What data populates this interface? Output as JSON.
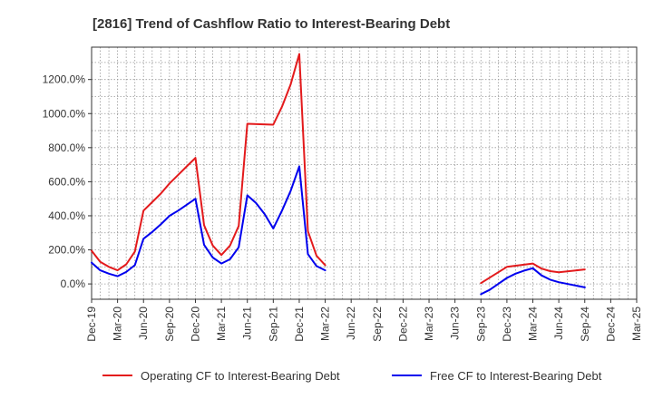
{
  "chart_data": {
    "type": "line",
    "title": "[2816]  Trend of Cashflow Ratio to Interest-Bearing Debt",
    "xlabel": "",
    "ylabel": "",
    "ylim": [
      -90,
      1390
    ],
    "y_ticks": [
      0,
      200,
      400,
      600,
      800,
      1000,
      1200
    ],
    "y_tick_labels": [
      "0.0%",
      "200.0%",
      "400.0%",
      "600.0%",
      "800.0%",
      "1000.0%",
      "1200.0%"
    ],
    "x_range": [
      "2019-12",
      "2025-03"
    ],
    "x_ticks": [
      "2019-12",
      "2020-03",
      "2020-06",
      "2020-09",
      "2020-12",
      "2021-03",
      "2021-06",
      "2021-09",
      "2021-12",
      "2022-03",
      "2022-06",
      "2022-09",
      "2022-12",
      "2023-03",
      "2023-06",
      "2023-09",
      "2023-12",
      "2024-03",
      "2024-06",
      "2024-09",
      "2024-12",
      "2025-03"
    ],
    "x_tick_labels": [
      "Dec-19",
      "Mar-20",
      "Jun-20",
      "Sep-20",
      "Dec-20",
      "Mar-21",
      "Jun-21",
      "Sep-21",
      "Dec-21",
      "Mar-22",
      "Jun-22",
      "Sep-22",
      "Dec-22",
      "Mar-23",
      "Jun-23",
      "Sep-23",
      "Dec-23",
      "Mar-24",
      "Jun-24",
      "Sep-24",
      "Dec-24",
      "Mar-25"
    ],
    "grid": true,
    "legend_position": "bottom",
    "series": [
      {
        "name": "Operating CF to Interest-Bearing Debt",
        "color": "#e31a1c",
        "segments": [
          [
            {
              "x": "2019-12",
              "y": 195
            },
            {
              "x": "2020-01",
              "y": 130
            },
            {
              "x": "2020-02",
              "y": 100
            },
            {
              "x": "2020-03",
              "y": 80
            },
            {
              "x": "2020-04",
              "y": 115
            },
            {
              "x": "2020-05",
              "y": 190
            },
            {
              "x": "2020-06",
              "y": 430
            },
            {
              "x": "2020-07",
              "y": 480
            },
            {
              "x": "2020-08",
              "y": 530
            },
            {
              "x": "2020-09",
              "y": 590
            },
            {
              "x": "2020-10",
              "y": 640
            },
            {
              "x": "2020-11",
              "y": 690
            },
            {
              "x": "2020-12",
              "y": 740
            },
            {
              "x": "2021-01",
              "y": 345
            },
            {
              "x": "2021-02",
              "y": 225
            },
            {
              "x": "2021-03",
              "y": 170
            },
            {
              "x": "2021-04",
              "y": 225
            },
            {
              "x": "2021-05",
              "y": 340
            },
            {
              "x": "2021-06",
              "y": 940
            },
            {
              "x": "2021-09",
              "y": 935
            },
            {
              "x": "2021-10",
              "y": 1040
            },
            {
              "x": "2021-11",
              "y": 1170
            },
            {
              "x": "2021-12",
              "y": 1350
            },
            {
              "x": "2022-01",
              "y": 310
            },
            {
              "x": "2022-02",
              "y": 165
            },
            {
              "x": "2022-03",
              "y": 110
            }
          ],
          [
            {
              "x": "2023-09",
              "y": 5
            },
            {
              "x": "2023-12",
              "y": 100
            },
            {
              "x": "2024-03",
              "y": 120
            },
            {
              "x": "2024-04",
              "y": 90
            },
            {
              "x": "2024-05",
              "y": 75
            },
            {
              "x": "2024-06",
              "y": 68
            },
            {
              "x": "2024-09",
              "y": 85
            }
          ]
        ]
      },
      {
        "name": "Free CF to Interest-Bearing Debt",
        "color": "#0000ee",
        "segments": [
          [
            {
              "x": "2019-12",
              "y": 125
            },
            {
              "x": "2020-01",
              "y": 80
            },
            {
              "x": "2020-02",
              "y": 60
            },
            {
              "x": "2020-03",
              "y": 45
            },
            {
              "x": "2020-04",
              "y": 70
            },
            {
              "x": "2020-05",
              "y": 110
            },
            {
              "x": "2020-06",
              "y": 265
            },
            {
              "x": "2020-07",
              "y": 305
            },
            {
              "x": "2020-08",
              "y": 350
            },
            {
              "x": "2020-09",
              "y": 400
            },
            {
              "x": "2020-10",
              "y": 430
            },
            {
              "x": "2020-11",
              "y": 465
            },
            {
              "x": "2020-12",
              "y": 500
            },
            {
              "x": "2021-01",
              "y": 230
            },
            {
              "x": "2021-02",
              "y": 155
            },
            {
              "x": "2021-03",
              "y": 120
            },
            {
              "x": "2021-04",
              "y": 145
            },
            {
              "x": "2021-05",
              "y": 215
            },
            {
              "x": "2021-06",
              "y": 520
            },
            {
              "x": "2021-07",
              "y": 475
            },
            {
              "x": "2021-08",
              "y": 410
            },
            {
              "x": "2021-09",
              "y": 325
            },
            {
              "x": "2021-10",
              "y": 430
            },
            {
              "x": "2021-11",
              "y": 545
            },
            {
              "x": "2021-12",
              "y": 690
            },
            {
              "x": "2022-01",
              "y": 175
            },
            {
              "x": "2022-02",
              "y": 105
            },
            {
              "x": "2022-03",
              "y": 80
            }
          ],
          [
            {
              "x": "2023-09",
              "y": -60
            },
            {
              "x": "2023-10",
              "y": -35
            },
            {
              "x": "2023-11",
              "y": 0
            },
            {
              "x": "2023-12",
              "y": 35
            },
            {
              "x": "2024-01",
              "y": 60
            },
            {
              "x": "2024-02",
              "y": 78
            },
            {
              "x": "2024-03",
              "y": 92
            },
            {
              "x": "2024-04",
              "y": 50
            },
            {
              "x": "2024-05",
              "y": 25
            },
            {
              "x": "2024-06",
              "y": 10
            },
            {
              "x": "2024-09",
              "y": -20
            }
          ]
        ]
      }
    ]
  }
}
